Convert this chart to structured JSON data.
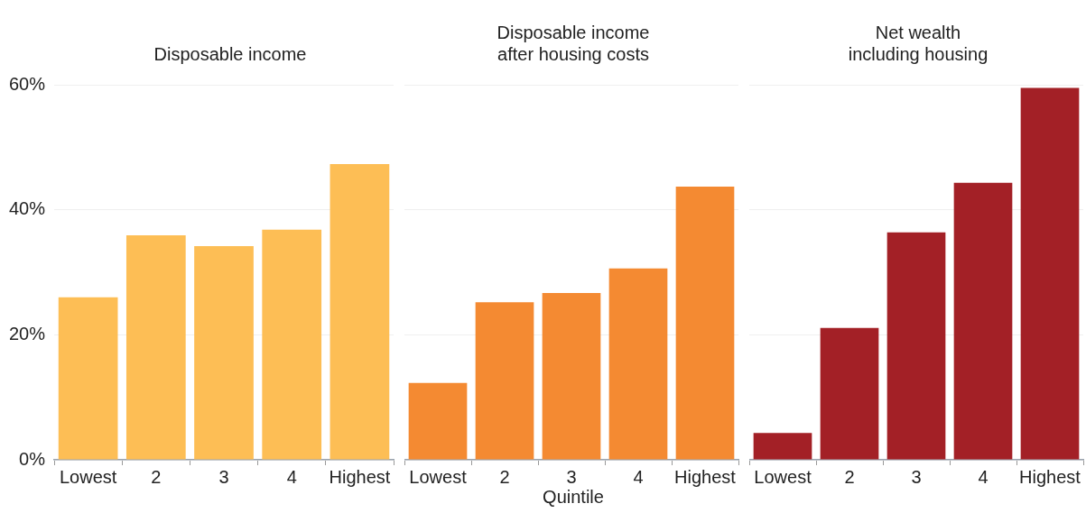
{
  "chart_data": [
    {
      "type": "bar",
      "title": "Disposable income",
      "categories": [
        "Lowest",
        "2",
        "3",
        "4",
        "Highest"
      ],
      "values": [
        26,
        35.9,
        34.2,
        36.8,
        47.3
      ],
      "color": "#fdbe55",
      "ylim": [
        0,
        60
      ],
      "yticks": [
        {
          "value": 0,
          "label": "0%"
        },
        {
          "value": 20,
          "label": "20%"
        },
        {
          "value": 40,
          "label": "40%"
        },
        {
          "value": 60,
          "label": "60%"
        }
      ],
      "grid": "y",
      "legend": false
    },
    {
      "type": "bar",
      "title": "Disposable income after housing costs",
      "xlabel": "Quintile",
      "categories": [
        "Lowest",
        "2",
        "3",
        "4",
        "Highest"
      ],
      "values": [
        12.3,
        25.2,
        26.7,
        30.6,
        43.7
      ],
      "color": "#f48a32",
      "ylim": [
        0,
        60
      ],
      "yticks": [
        0,
        20,
        40,
        60
      ],
      "grid": "y",
      "legend": false,
      "tick_labels": "x"
    },
    {
      "type": "bar",
      "title": "Net wealth including housing",
      "categories": [
        "Lowest",
        "2",
        "3",
        "4",
        "Highest"
      ],
      "values": [
        4.3,
        21.1,
        36.4,
        44.3,
        59.5
      ],
      "color": "#a32026",
      "ylim": [
        0,
        60
      ],
      "yticks": [
        0,
        20,
        40,
        60
      ],
      "grid": "y",
      "legend": false,
      "tick_labels": "x"
    }
  ]
}
